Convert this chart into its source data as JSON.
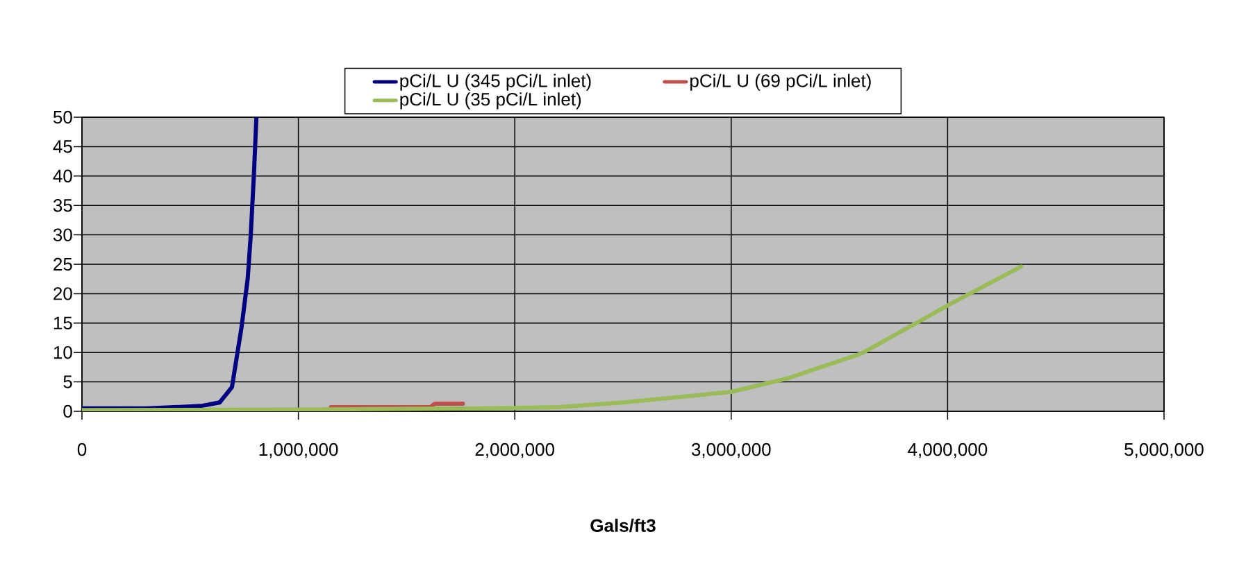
{
  "chart_data": {
    "type": "line",
    "xlabel": "Gals/ft3",
    "xlim": [
      0,
      5000000
    ],
    "ylim": [
      0,
      50
    ],
    "xticks": [
      0,
      {
        "value": 1000000,
        "label": "1,000,000"
      },
      {
        "value": 2000000,
        "label": "2,000,000"
      },
      {
        "value": 3000000,
        "label": "3,000,000"
      },
      {
        "value": 4000000,
        "label": "4,000,000"
      },
      {
        "value": 5000000,
        "label": "5,000,000"
      }
    ],
    "yticks": [
      0,
      5,
      10,
      15,
      20,
      25,
      30,
      35,
      40,
      45,
      50
    ],
    "grid": true,
    "legend": "top",
    "marker": "none",
    "line_style": "solid",
    "series": [
      {
        "name": "pCi/L  U   (345 pCi/L inlet)",
        "color": "#000080",
        "x": [
          0,
          300000,
          550000,
          636000,
          693000,
          737000,
          766000,
          780000,
          795000,
          806000
        ],
        "values": [
          0.5,
          0.5,
          0.9,
          1.5,
          4.1,
          14.2,
          22.6,
          30,
          40.6,
          50
        ]
      },
      {
        "name": "pCi/L U (69 pCi/L inlet)",
        "color": "#c0504d",
        "x": [
          1150000,
          1610000,
          1630000,
          1760000
        ],
        "values": [
          0.7,
          0.7,
          1.3,
          1.3
        ]
      },
      {
        "name": "pCi/L U (35 pCi/L inlet)",
        "color": "#9bbb59",
        "x": [
          0,
          1000000,
          1870000,
          2200000,
          2500000,
          3000000,
          3260000,
          3600000,
          3840000,
          4000000,
          4180000,
          4340000
        ],
        "values": [
          0.2,
          0.3,
          0.5,
          0.7,
          1.5,
          3.3,
          5.6,
          9.8,
          14.7,
          18,
          21.5,
          24.6
        ]
      }
    ]
  }
}
